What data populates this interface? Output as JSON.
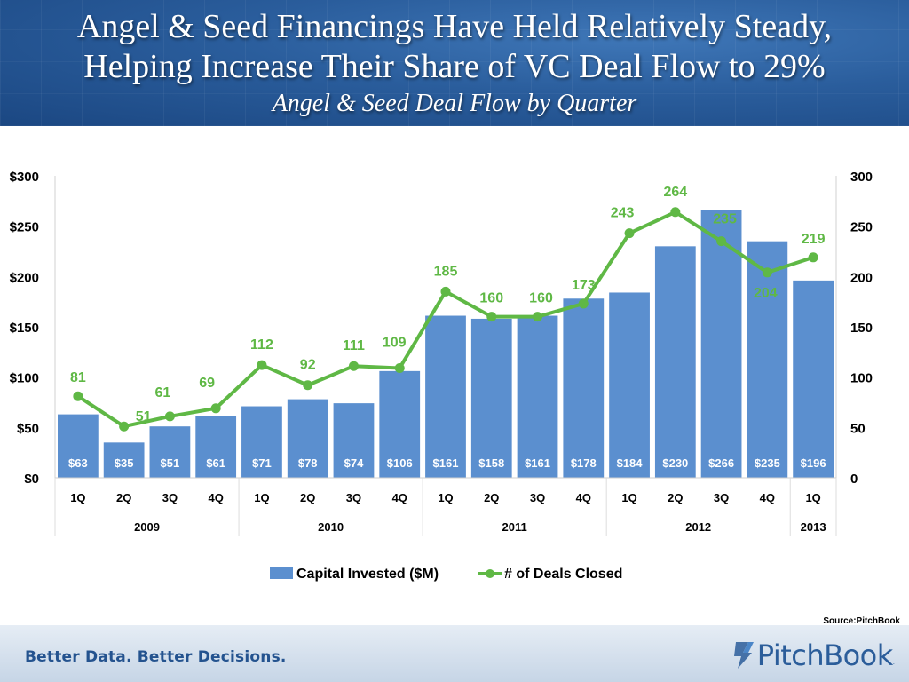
{
  "header": {
    "title_line1": "Angel & Seed Financings Have Held Relatively Steady,",
    "title_line2": "Helping Increase Their Share of VC Deal Flow to 29%",
    "subtitle": "Angel & Seed Deal Flow by Quarter"
  },
  "chart_data": {
    "type": "bar+line",
    "title": "Angel & Seed Deal Flow by Quarter",
    "categories": [
      "1Q",
      "2Q",
      "3Q",
      "4Q",
      "1Q",
      "2Q",
      "3Q",
      "4Q",
      "1Q",
      "2Q",
      "3Q",
      "4Q",
      "1Q",
      "2Q",
      "3Q",
      "4Q",
      "1Q"
    ],
    "years": [
      {
        "label": "2009",
        "count": 4
      },
      {
        "label": "2010",
        "count": 4
      },
      {
        "label": "2011",
        "count": 4
      },
      {
        "label": "2012",
        "count": 4
      },
      {
        "label": "2013",
        "count": 1
      }
    ],
    "series": [
      {
        "name": "Capital Invested ($M)",
        "type": "bar",
        "axis": "left",
        "color": "#5b8fcf",
        "values": [
          63,
          35,
          51,
          61,
          71,
          78,
          74,
          106,
          161,
          158,
          161,
          178,
          184,
          230,
          266,
          235,
          196
        ],
        "labels": [
          "$63",
          "$35",
          "$51",
          "$61",
          "$71",
          "$78",
          "$74",
          "$106",
          "$161",
          "$158",
          "$161",
          "$178",
          "$184",
          "$230",
          "$266",
          "$235",
          "$196"
        ]
      },
      {
        "name": "# of Deals Closed",
        "type": "line",
        "axis": "right",
        "color": "#5fb845",
        "values": [
          81,
          51,
          61,
          69,
          112,
          92,
          111,
          109,
          185,
          160,
          160,
          173,
          243,
          264,
          235,
          204,
          219
        ],
        "labels": [
          "81",
          "51",
          "61",
          "69",
          "112",
          "92",
          "111",
          "109",
          "185",
          "160",
          "160",
          "173",
          "243",
          "264",
          "235",
          "204",
          "219"
        ]
      }
    ],
    "left_axis": {
      "min": 0,
      "max": 300,
      "ticks": [
        "$0",
        "$50",
        "$100",
        "$150",
        "$200",
        "$250",
        "$300"
      ]
    },
    "right_axis": {
      "min": 0,
      "max": 300,
      "ticks": [
        "0",
        "50",
        "100",
        "150",
        "200",
        "250",
        "300"
      ]
    },
    "legend_position": "bottom"
  },
  "source": "Source:PitchBook",
  "footer": {
    "tagline": "Better Data. Better Decisions.",
    "brand": "PitchBook",
    "brand_mark": "."
  },
  "colors": {
    "bar": "#5b8fcf",
    "line": "#5fb845",
    "header": "#2a5d9c",
    "footer": "#c6d5e6",
    "brand": "#2b5d9a"
  }
}
